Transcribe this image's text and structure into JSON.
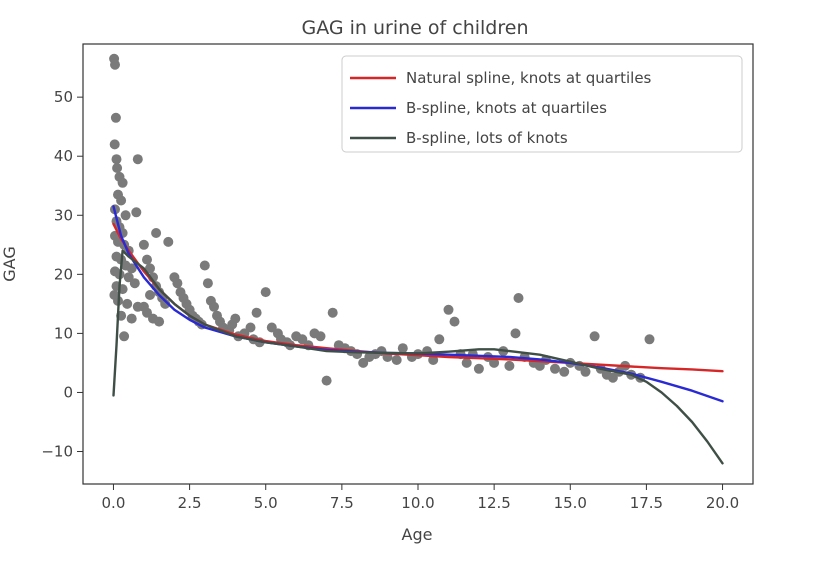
{
  "chart_data": {
    "type": "scatter",
    "title": "GAG in urine of children",
    "xlabel": "Age",
    "ylabel": "GAG",
    "xlim": [
      -1.0,
      21.0
    ],
    "ylim": [
      -15.5,
      59.0
    ],
    "xticks": [
      0.0,
      2.5,
      5.0,
      7.5,
      10.0,
      12.5,
      15.0,
      17.5,
      20.0
    ],
    "xtick_labels": [
      "0.0",
      "2.5",
      "5.0",
      "7.5",
      "10.0",
      "12.5",
      "15.0",
      "17.5",
      "20.0"
    ],
    "yticks": [
      -10,
      0,
      10,
      20,
      30,
      40,
      50
    ],
    "ytick_labels": [
      "−10",
      "0",
      "10",
      "20",
      "30",
      "40",
      "50"
    ],
    "grid": false,
    "legend_position": "top-right",
    "scatter": {
      "color": "#7a7a7a",
      "points": [
        [
          0.02,
          56.5
        ],
        [
          0.05,
          55.5
        ],
        [
          0.08,
          46.5
        ],
        [
          0.04,
          42.0
        ],
        [
          0.1,
          39.5
        ],
        [
          0.12,
          38.0
        ],
        [
          0.2,
          36.5
        ],
        [
          0.3,
          35.5
        ],
        [
          0.15,
          33.5
        ],
        [
          0.25,
          32.5
        ],
        [
          0.05,
          31.0
        ],
        [
          0.4,
          30.0
        ],
        [
          0.1,
          29.0
        ],
        [
          0.2,
          28.0
        ],
        [
          0.3,
          27.0
        ],
        [
          0.05,
          26.5
        ],
        [
          0.15,
          25.5
        ],
        [
          0.35,
          25.0
        ],
        [
          0.5,
          24.0
        ],
        [
          0.1,
          23.0
        ],
        [
          0.25,
          22.5
        ],
        [
          0.4,
          21.5
        ],
        [
          0.6,
          21.0
        ],
        [
          0.05,
          20.5
        ],
        [
          0.2,
          20.0
        ],
        [
          0.5,
          19.5
        ],
        [
          0.7,
          18.5
        ],
        [
          0.1,
          18.0
        ],
        [
          0.3,
          17.5
        ],
        [
          0.03,
          16.5
        ],
        [
          0.15,
          15.5
        ],
        [
          0.45,
          15.0
        ],
        [
          0.8,
          14.5
        ],
        [
          0.25,
          13.0
        ],
        [
          0.6,
          12.5
        ],
        [
          0.35,
          9.5
        ],
        [
          0.75,
          30.5
        ],
        [
          0.8,
          39.5
        ],
        [
          1.0,
          25.0
        ],
        [
          1.1,
          22.5
        ],
        [
          1.2,
          21.0
        ],
        [
          1.3,
          19.5
        ],
        [
          1.4,
          18.0
        ],
        [
          1.5,
          17.0
        ],
        [
          1.6,
          16.0
        ],
        [
          1.7,
          15.0
        ],
        [
          1.0,
          14.5
        ],
        [
          1.1,
          13.5
        ],
        [
          1.3,
          12.5
        ],
        [
          1.5,
          12.0
        ],
        [
          1.2,
          16.5
        ],
        [
          1.4,
          27.0
        ],
        [
          1.8,
          25.5
        ],
        [
          2.0,
          19.5
        ],
        [
          2.1,
          18.5
        ],
        [
          2.2,
          17.0
        ],
        [
          2.3,
          16.0
        ],
        [
          2.4,
          15.0
        ],
        [
          2.5,
          14.0
        ],
        [
          2.6,
          13.0
        ],
        [
          2.7,
          12.5
        ],
        [
          2.8,
          12.0
        ],
        [
          2.9,
          11.5
        ],
        [
          3.0,
          21.5
        ],
        [
          3.1,
          18.5
        ],
        [
          3.2,
          15.5
        ],
        [
          3.3,
          14.5
        ],
        [
          3.4,
          13.0
        ],
        [
          3.5,
          12.0
        ],
        [
          3.6,
          11.0
        ],
        [
          3.8,
          10.5
        ],
        [
          3.9,
          11.5
        ],
        [
          4.0,
          12.5
        ],
        [
          4.1,
          9.5
        ],
        [
          4.3,
          10.0
        ],
        [
          4.5,
          11.0
        ],
        [
          4.6,
          9.0
        ],
        [
          4.8,
          8.5
        ],
        [
          5.0,
          17.0
        ],
        [
          4.7,
          13.5
        ],
        [
          5.2,
          11.0
        ],
        [
          5.4,
          10.0
        ],
        [
          5.5,
          9.0
        ],
        [
          5.7,
          8.5
        ],
        [
          5.8,
          8.0
        ],
        [
          6.0,
          9.5
        ],
        [
          6.2,
          9.0
        ],
        [
          6.4,
          8.0
        ],
        [
          6.6,
          10.0
        ],
        [
          6.8,
          9.5
        ],
        [
          7.0,
          2.0
        ],
        [
          7.2,
          13.5
        ],
        [
          7.4,
          8.0
        ],
        [
          7.6,
          7.5
        ],
        [
          7.8,
          7.0
        ],
        [
          8.0,
          6.5
        ],
        [
          8.2,
          5.0
        ],
        [
          8.4,
          6.0
        ],
        [
          8.6,
          6.5
        ],
        [
          8.8,
          7.0
        ],
        [
          9.0,
          6.0
        ],
        [
          9.3,
          5.5
        ],
        [
          9.5,
          7.5
        ],
        [
          9.8,
          6.0
        ],
        [
          10.0,
          6.5
        ],
        [
          10.3,
          7.0
        ],
        [
          10.5,
          5.5
        ],
        [
          10.7,
          9.0
        ],
        [
          11.0,
          14.0
        ],
        [
          11.2,
          12.0
        ],
        [
          11.4,
          6.5
        ],
        [
          11.6,
          5.0
        ],
        [
          11.8,
          6.5
        ],
        [
          12.0,
          4.0
        ],
        [
          12.3,
          6.0
        ],
        [
          12.5,
          5.0
        ],
        [
          12.8,
          7.0
        ],
        [
          13.0,
          4.5
        ],
        [
          13.3,
          16.0
        ],
        [
          13.2,
          10.0
        ],
        [
          13.5,
          6.0
        ],
        [
          13.8,
          5.0
        ],
        [
          14.0,
          4.5
        ],
        [
          14.2,
          5.5
        ],
        [
          14.5,
          4.0
        ],
        [
          14.8,
          3.5
        ],
        [
          15.0,
          5.0
        ],
        [
          15.3,
          4.5
        ],
        [
          15.5,
          3.5
        ],
        [
          15.8,
          9.5
        ],
        [
          16.0,
          4.0
        ],
        [
          16.2,
          3.0
        ],
        [
          16.4,
          2.5
        ],
        [
          16.6,
          3.5
        ],
        [
          16.8,
          4.5
        ],
        [
          17.0,
          3.0
        ],
        [
          17.3,
          2.5
        ],
        [
          17.6,
          9.0
        ]
      ]
    },
    "series": [
      {
        "name": "Natural spline, knots at quartiles",
        "color": "#d62728",
        "x": [
          0,
          0.25,
          0.5,
          1,
          1.5,
          2,
          2.5,
          3,
          4,
          5,
          6,
          7,
          8,
          9,
          10,
          11,
          12,
          13,
          14,
          15,
          16,
          17,
          18,
          19,
          20
        ],
        "y": [
          28.5,
          26.0,
          24.0,
          20.5,
          17.5,
          15.0,
          13.0,
          11.5,
          9.8,
          8.7,
          8.0,
          7.5,
          7.0,
          6.6,
          6.3,
          6.0,
          5.8,
          5.6,
          5.3,
          5.0,
          4.7,
          4.4,
          4.1,
          3.9,
          3.6
        ]
      },
      {
        "name": "B-spline, knots at quartiles",
        "color": "#2a2ad4",
        "x": [
          0,
          0.1,
          0.25,
          0.5,
          1,
          1.5,
          2,
          2.5,
          3,
          4,
          5,
          6,
          7,
          8,
          9,
          10,
          11,
          12,
          13,
          14,
          15,
          16,
          17,
          18,
          19,
          20
        ],
        "y": [
          31.5,
          29.5,
          26.5,
          23.5,
          19.5,
          16.5,
          14.0,
          12.3,
          11.0,
          9.5,
          8.5,
          7.8,
          7.2,
          6.9,
          6.7,
          6.6,
          6.4,
          6.2,
          6.0,
          5.6,
          5.0,
          4.2,
          3.2,
          1.8,
          0.3,
          -1.5
        ]
      },
      {
        "name": "B-spline, lots of knots",
        "color": "#3f4f47",
        "x": [
          0,
          0.1,
          0.2,
          0.3,
          0.5,
          1,
          1.5,
          2,
          2.5,
          3,
          4,
          5,
          6,
          7,
          8,
          9,
          10,
          11,
          12,
          12.5,
          13,
          14,
          15,
          15.5,
          16,
          16.5,
          17,
          17.5,
          18,
          18.5,
          19,
          19.5,
          20
        ],
        "y": [
          -0.5,
          8.0,
          18.0,
          24.0,
          23.0,
          21.0,
          17.5,
          15.0,
          13.0,
          11.5,
          9.5,
          8.5,
          7.8,
          7.0,
          6.8,
          6.7,
          6.6,
          6.9,
          7.3,
          7.3,
          7.0,
          6.4,
          5.2,
          4.6,
          4.0,
          3.5,
          3.0,
          1.8,
          0.0,
          -2.3,
          -5.0,
          -8.3,
          -12.0
        ]
      }
    ]
  }
}
